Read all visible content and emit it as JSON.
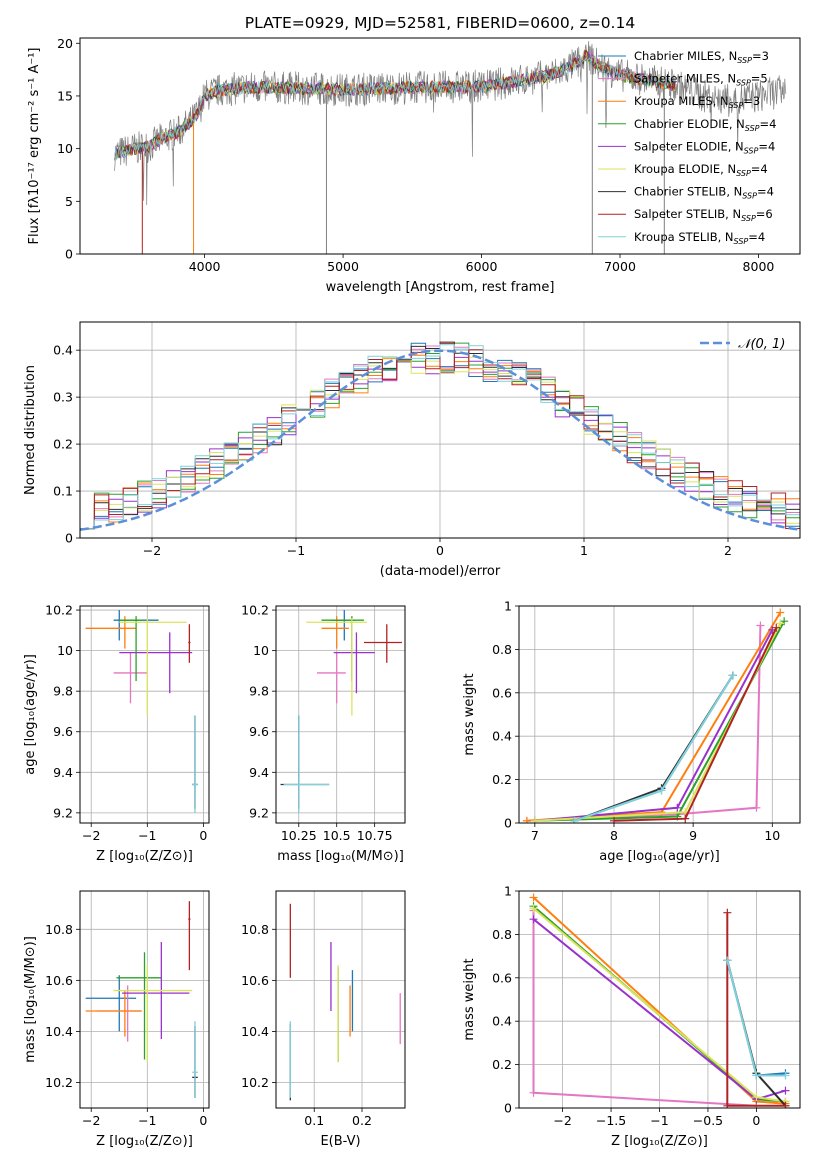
{
  "figure": {
    "title": "PLATE=0929, MJD=52581, FIBERID=0600, z=0.14"
  },
  "colors": {
    "chabrier_miles": "#1f77b4",
    "salpeter_miles": "#e377c2",
    "kroupa_miles": "#ff7f0e",
    "chabrier_elodie": "#2ca02c",
    "salpeter_elodie": "#9932cc",
    "kroupa_elodie": "#dbe35c",
    "chabrier_stelib": "#2f2f2f",
    "salpeter_stelib": "#b22222",
    "kroupa_stelib": "#7fd1dc",
    "data": "#808080",
    "gaussian": "#5b8fd9",
    "grid": "#b0b0b0"
  },
  "legend_entries": [
    {
      "name": "Chabrier MILES, N",
      "sub": "SSP",
      "tail": "=3",
      "color": "#1f77b4"
    },
    {
      "name": "Salpeter MILES, N",
      "sub": "SSP",
      "tail": "=5",
      "color": "#e377c2"
    },
    {
      "name": "Kroupa MILES, N",
      "sub": "SSP",
      "tail": "=3",
      "color": "#ff7f0e"
    },
    {
      "name": "Chabrier ELODIE, N",
      "sub": "SSP",
      "tail": "=4",
      "color": "#2ca02c"
    },
    {
      "name": "Salpeter ELODIE, N",
      "sub": "SSP",
      "tail": "=4",
      "color": "#9932cc"
    },
    {
      "name": "Kroupa ELODIE, N",
      "sub": "SSP",
      "tail": "=4",
      "color": "#dbe35c"
    },
    {
      "name": "Chabrier STELIB, N",
      "sub": "SSP",
      "tail": "=4",
      "color": "#2f2f2f"
    },
    {
      "name": "Salpeter STELIB, N",
      "sub": "SSP",
      "tail": "=6",
      "color": "#b22222"
    },
    {
      "name": "Kroupa STELIB, N",
      "sub": "SSP",
      "tail": "=4",
      "color": "#7fd1dc"
    }
  ],
  "chart_data": [
    {
      "id": "spectrum",
      "type": "line",
      "xlabel": "wavelength [Angstrom, rest frame]",
      "ylabel": "Flux [fλ10⁻¹⁷ erg cm⁻² s⁻¹ A⁻¹]",
      "xlim": [
        3100,
        8300
      ],
      "ylim": [
        0,
        20.5
      ],
      "xticks": [
        4000,
        5000,
        6000,
        7000,
        8000
      ],
      "yticks": [
        0,
        5,
        10,
        15,
        20
      ],
      "grid": false,
      "legend": "right",
      "continuum": {
        "x": [
          3350,
          3500,
          3600,
          3700,
          3800,
          3900,
          3950,
          4000,
          4100,
          4300,
          4500,
          5000,
          5500,
          6000,
          6300,
          6500,
          6600,
          6700,
          6750,
          6800,
          6850,
          7000,
          7200,
          7400,
          7600,
          7800,
          8000,
          8200
        ],
        "y": [
          9.5,
          10.0,
          10.2,
          11.0,
          11.5,
          12.5,
          13.3,
          15.0,
          15.5,
          15.8,
          15.8,
          15.6,
          15.8,
          15.9,
          16.5,
          17.0,
          17.5,
          18.2,
          18.8,
          18.5,
          17.8,
          17.0,
          16.5,
          16.0,
          15.0,
          14.5,
          15.0,
          15.5
        ]
      },
      "model_x_ranges": [
        [
          3350,
          7400
        ],
        [
          3350,
          7400
        ],
        [
          3350,
          7400
        ],
        [
          3350,
          7400
        ],
        [
          3350,
          7400
        ],
        [
          3350,
          7400
        ],
        [
          3350,
          7400
        ],
        [
          3350,
          7400
        ],
        [
          3350,
          7400
        ]
      ],
      "data_x_range": [
        3350,
        8200
      ]
    },
    {
      "id": "residuals",
      "type": "histogram",
      "xlabel": "(data-model)/error",
      "ylabel": "Normed distribution",
      "xlim": [
        -2.5,
        2.5
      ],
      "ylim": [
        0,
        0.46
      ],
      "xticks": [
        -2,
        -1,
        0,
        1,
        2
      ],
      "yticks": [
        0,
        0.1,
        0.2,
        0.3,
        0.4
      ],
      "grid": true,
      "bin_width": 0.1,
      "bin_start": -2.5,
      "legend": {
        "label": "𝒩(0, 1)",
        "position": "top-right"
      }
    },
    {
      "id": "age_vs_Z",
      "type": "errorbar",
      "xlabel": "Z [log₁₀(Z/Z⊙)]",
      "ylabel": "age  [log₁₀(age/yr)]",
      "xlim": [
        -2.2,
        0.1
      ],
      "ylim": [
        9.15,
        10.22
      ],
      "xticks": [
        -2,
        -1,
        0
      ],
      "yticks": [
        9.2,
        9.4,
        9.6,
        9.8,
        10.0,
        10.2
      ],
      "grid": true,
      "points": [
        {
          "x": -1.5,
          "xerr": [
            0.1,
            0.7
          ],
          "y": 10.15,
          "yerr": [
            0.1,
            0.05
          ],
          "color": "#1f77b4"
        },
        {
          "x": -1.3,
          "xerr": [
            0.3,
            0.3
          ],
          "y": 9.89,
          "yerr": [
            0.15,
            0.1
          ],
          "color": "#e377c2"
        },
        {
          "x": -1.4,
          "xerr": [
            0.7,
            0.2
          ],
          "y": 10.11,
          "yerr": [
            0.1,
            0.06
          ],
          "color": "#ff7f0e"
        },
        {
          "x": -1.2,
          "xerr": [
            0.3,
            0.1
          ],
          "y": 10.15,
          "yerr": [
            0.3,
            0.02
          ],
          "color": "#2ca02c"
        },
        {
          "x": -0.6,
          "xerr": [
            0.9,
            0.4
          ],
          "y": 9.99,
          "yerr": [
            0.2,
            0.1
          ],
          "color": "#9932cc"
        },
        {
          "x": -1.0,
          "xerr": [
            0.5,
            0.7
          ],
          "y": 10.14,
          "yerr": [
            0.46,
            0.02
          ],
          "color": "#dbe35c"
        },
        {
          "x": -0.15,
          "xerr": [
            0.05,
            0.05
          ],
          "y": 9.34,
          "yerr": [
            0.12,
            0.34
          ],
          "color": "#2f2f2f"
        },
        {
          "x": -0.25,
          "xerr": [
            0.02,
            0.02
          ],
          "y": 10.04,
          "yerr": [
            0.1,
            0.09
          ],
          "color": "#b22222"
        },
        {
          "x": -0.15,
          "xerr": [
            0.05,
            0.05
          ],
          "y": 9.34,
          "yerr": [
            0.14,
            0.34
          ],
          "color": "#7fd1dc"
        }
      ]
    },
    {
      "id": "age_vs_mass",
      "type": "errorbar",
      "xlabel": "mass [log₁₀(M/M⊙)]",
      "ylabel": "",
      "xlim": [
        10.1,
        10.95
      ],
      "ylim": [
        9.15,
        10.22
      ],
      "xticks": [
        10.25,
        10.5,
        10.75
      ],
      "yticks": [
        9.2,
        9.4,
        9.6,
        9.8,
        10.0,
        10.2
      ],
      "grid": true,
      "points": [
        {
          "x": 10.55,
          "xerr": [
            0.09,
            0.07
          ],
          "y": 10.15,
          "yerr": [
            0.1,
            0.05
          ],
          "color": "#1f77b4"
        },
        {
          "x": 10.5,
          "xerr": [
            0.13,
            0.06
          ],
          "y": 9.89,
          "yerr": [
            0.15,
            0.1
          ],
          "color": "#e377c2"
        },
        {
          "x": 10.5,
          "xerr": [
            0.1,
            0.08
          ],
          "y": 10.11,
          "yerr": [
            0.1,
            0.06
          ],
          "color": "#ff7f0e"
        },
        {
          "x": 10.6,
          "xerr": [
            0.2,
            0.08
          ],
          "y": 10.15,
          "yerr": [
            0.3,
            0.02
          ],
          "color": "#2ca02c"
        },
        {
          "x": 10.63,
          "xerr": [
            0.15,
            0.12
          ],
          "y": 9.99,
          "yerr": [
            0.2,
            0.1
          ],
          "color": "#9932cc"
        },
        {
          "x": 10.6,
          "xerr": [
            0.3,
            0.1
          ],
          "y": 10.14,
          "yerr": [
            0.46,
            0.02
          ],
          "color": "#dbe35c"
        },
        {
          "x": 10.25,
          "xerr": [
            0.12,
            0.2
          ],
          "y": 9.34,
          "yerr": [
            0.12,
            0.34
          ],
          "color": "#2f2f2f"
        },
        {
          "x": 10.83,
          "xerr": [
            0.15,
            0.1
          ],
          "y": 10.04,
          "yerr": [
            0.1,
            0.09
          ],
          "color": "#b22222"
        },
        {
          "x": 10.25,
          "xerr": [
            0.1,
            0.2
          ],
          "y": 9.34,
          "yerr": [
            0.14,
            0.34
          ],
          "color": "#7fd1dc"
        }
      ]
    },
    {
      "id": "weight_vs_age",
      "type": "line",
      "xlabel": "age  [log₁₀(age/yr)]",
      "ylabel": "mass weight",
      "xlim": [
        6.8,
        10.35
      ],
      "ylim": [
        0,
        1.0
      ],
      "xticks": [
        7,
        8,
        9,
        10
      ],
      "yticks": [
        0.0,
        0.2,
        0.4,
        0.6,
        0.8,
        1.0
      ],
      "grid": true,
      "series": [
        {
          "color": "#1f77b4",
          "x": [
            7.5,
            8.6,
            9.5
          ],
          "y": [
            0.01,
            0.15,
            0.68
          ]
        },
        {
          "color": "#e377c2",
          "x": [
            6.9,
            8.8,
            9.8,
            9.85
          ],
          "y": [
            0.01,
            0.04,
            0.07,
            0.91
          ]
        },
        {
          "color": "#ff7f0e",
          "x": [
            6.9,
            8.6,
            10.1
          ],
          "y": [
            0.01,
            0.05,
            0.97
          ]
        },
        {
          "color": "#2ca02c",
          "x": [
            7.0,
            8.8,
            10.15
          ],
          "y": [
            0.01,
            0.03,
            0.93
          ]
        },
        {
          "color": "#9932cc",
          "x": [
            7.0,
            8.8,
            10.0
          ],
          "y": [
            0.01,
            0.07,
            0.89
          ]
        },
        {
          "color": "#dbe35c",
          "x": [
            7.0,
            8.9,
            10.1
          ],
          "y": [
            0.01,
            0.05,
            0.92
          ]
        },
        {
          "color": "#2f2f2f",
          "x": [
            7.5,
            8.6,
            9.5
          ],
          "y": [
            0.01,
            0.16,
            0.68
          ]
        },
        {
          "color": "#b22222",
          "x": [
            8.0,
            8.9,
            10.05
          ],
          "y": [
            0.01,
            0.02,
            0.9
          ]
        },
        {
          "color": "#7fd1dc",
          "x": [
            7.5,
            8.6,
            9.5
          ],
          "y": [
            0.01,
            0.15,
            0.68
          ]
        }
      ]
    },
    {
      "id": "mass_vs_Z",
      "type": "errorbar",
      "xlabel": "Z [log₁₀(Z/Z⊙)]",
      "ylabel": "mass [log₁₀(M/M⊙)]",
      "xlim": [
        -2.2,
        0.1
      ],
      "ylim": [
        10.1,
        10.95
      ],
      "xticks": [
        -2,
        -1,
        0
      ],
      "yticks": [
        10.2,
        10.4,
        10.6,
        10.8
      ],
      "grid": true,
      "points": [
        {
          "x": -1.5,
          "xerr": [
            0.6,
            0.3
          ],
          "y": 10.53,
          "yerr": [
            0.13,
            0.09
          ],
          "color": "#1f77b4"
        },
        {
          "x": -1.35,
          "xerr": [
            0.55,
            0.25
          ],
          "y": 10.48,
          "yerr": [
            0.12,
            0.1
          ],
          "color": "#e377c2"
        },
        {
          "x": -1.4,
          "xerr": [
            0.7,
            0.3
          ],
          "y": 10.48,
          "yerr": [
            0.1,
            0.08
          ],
          "color": "#ff7f0e"
        },
        {
          "x": -1.05,
          "xerr": [
            0.5,
            0.3
          ],
          "y": 10.61,
          "yerr": [
            0.32,
            0.1
          ],
          "color": "#2ca02c"
        },
        {
          "x": -0.75,
          "xerr": [
            0.7,
            0.5
          ],
          "y": 10.55,
          "yerr": [
            0.18,
            0.2
          ],
          "color": "#9932cc"
        },
        {
          "x": -1.0,
          "xerr": [
            0.6,
            0.8
          ],
          "y": 10.56,
          "yerr": [
            0.28,
            0.1
          ],
          "color": "#dbe35c"
        },
        {
          "x": -0.15,
          "xerr": [
            0.05,
            0.05
          ],
          "y": 10.22,
          "yerr": [
            0.08,
            0.2
          ],
          "color": "#2f2f2f"
        },
        {
          "x": -0.25,
          "xerr": [
            0.02,
            0.02
          ],
          "y": 10.84,
          "yerr": [
            0.2,
            0.07
          ],
          "color": "#b22222"
        },
        {
          "x": -0.15,
          "xerr": [
            0.05,
            0.05
          ],
          "y": 10.24,
          "yerr": [
            0.1,
            0.2
          ],
          "color": "#7fd1dc"
        }
      ]
    },
    {
      "id": "mass_vs_ebv",
      "type": "errorbar",
      "xlabel": "E(B-V)",
      "ylabel": "",
      "xlim": [
        0.02,
        0.29
      ],
      "ylim": [
        10.1,
        10.95
      ],
      "xticks": [
        0.1,
        0.2
      ],
      "yticks": [
        10.2,
        10.4,
        10.6,
        10.8
      ],
      "grid": true,
      "points": [
        {
          "x": 0.18,
          "y": 10.53,
          "yerr": [
            0.13,
            0.11
          ],
          "color": "#1f77b4"
        },
        {
          "x": 0.28,
          "y": 10.45,
          "yerr": [
            0.1,
            0.1
          ],
          "color": "#e377c2"
        },
        {
          "x": 0.175,
          "y": 10.48,
          "yerr": [
            0.1,
            0.1
          ],
          "color": "#ff7f0e"
        },
        {
          "x": 0.15,
          "y": 10.6,
          "yerr": [
            0.32,
            0.05
          ],
          "color": "#2ca02c"
        },
        {
          "x": 0.135,
          "y": 10.58,
          "yerr": [
            0.1,
            0.17
          ],
          "color": "#9932cc"
        },
        {
          "x": 0.15,
          "y": 10.56,
          "yerr": [
            0.28,
            0.1
          ],
          "color": "#dbe35c"
        },
        {
          "x": 0.05,
          "y": 10.23,
          "yerr": [
            0.1,
            0.2
          ],
          "color": "#2f2f2f"
        },
        {
          "x": 0.05,
          "y": 10.75,
          "yerr": [
            0.14,
            0.15
          ],
          "color": "#b22222"
        },
        {
          "x": 0.05,
          "y": 10.24,
          "yerr": [
            0.1,
            0.2
          ],
          "color": "#7fd1dc"
        }
      ]
    },
    {
      "id": "weight_vs_Z",
      "type": "line",
      "xlabel": "Z [log₁₀(Z/Z⊙)]",
      "ylabel": "mass weight",
      "xlim": [
        -2.45,
        0.45
      ],
      "ylim": [
        0,
        1.0
      ],
      "xticks": [
        -2.0,
        -1.5,
        -1.0,
        -0.5,
        0.0
      ],
      "yticks": [
        0.0,
        0.2,
        0.4,
        0.6,
        0.8,
        1.0
      ],
      "grid": true,
      "series": [
        {
          "color": "#1f77b4",
          "x": [
            -0.3,
            0.0,
            0.3
          ],
          "y": [
            0.68,
            0.15,
            0.16
          ]
        },
        {
          "color": "#e377c2",
          "x": [
            -2.3,
            -2.3,
            0.0
          ],
          "y": [
            0.91,
            0.07,
            0.01
          ]
        },
        {
          "color": "#ff7f0e",
          "x": [
            -2.3,
            0.0,
            0.3
          ],
          "y": [
            0.97,
            0.03,
            0.02
          ]
        },
        {
          "color": "#2ca02c",
          "x": [
            -2.3,
            0.0,
            0.3
          ],
          "y": [
            0.93,
            0.04,
            0.03
          ]
        },
        {
          "color": "#9932cc",
          "x": [
            -2.3,
            0.0,
            0.3
          ],
          "y": [
            0.87,
            0.04,
            0.08
          ]
        },
        {
          "color": "#dbe35c",
          "x": [
            -2.3,
            0.0,
            0.3
          ],
          "y": [
            0.92,
            0.05,
            0.03
          ]
        },
        {
          "color": "#2f2f2f",
          "x": [
            -0.3,
            0.0,
            0.3
          ],
          "y": [
            0.68,
            0.16,
            0.01
          ]
        },
        {
          "color": "#b22222",
          "x": [
            -0.3,
            -0.3,
            0.3
          ],
          "y": [
            0.9,
            0.01,
            0.01
          ]
        },
        {
          "color": "#7fd1dc",
          "x": [
            -0.3,
            0.0,
            0.3
          ],
          "y": [
            0.68,
            0.15,
            0.15
          ]
        }
      ]
    }
  ]
}
